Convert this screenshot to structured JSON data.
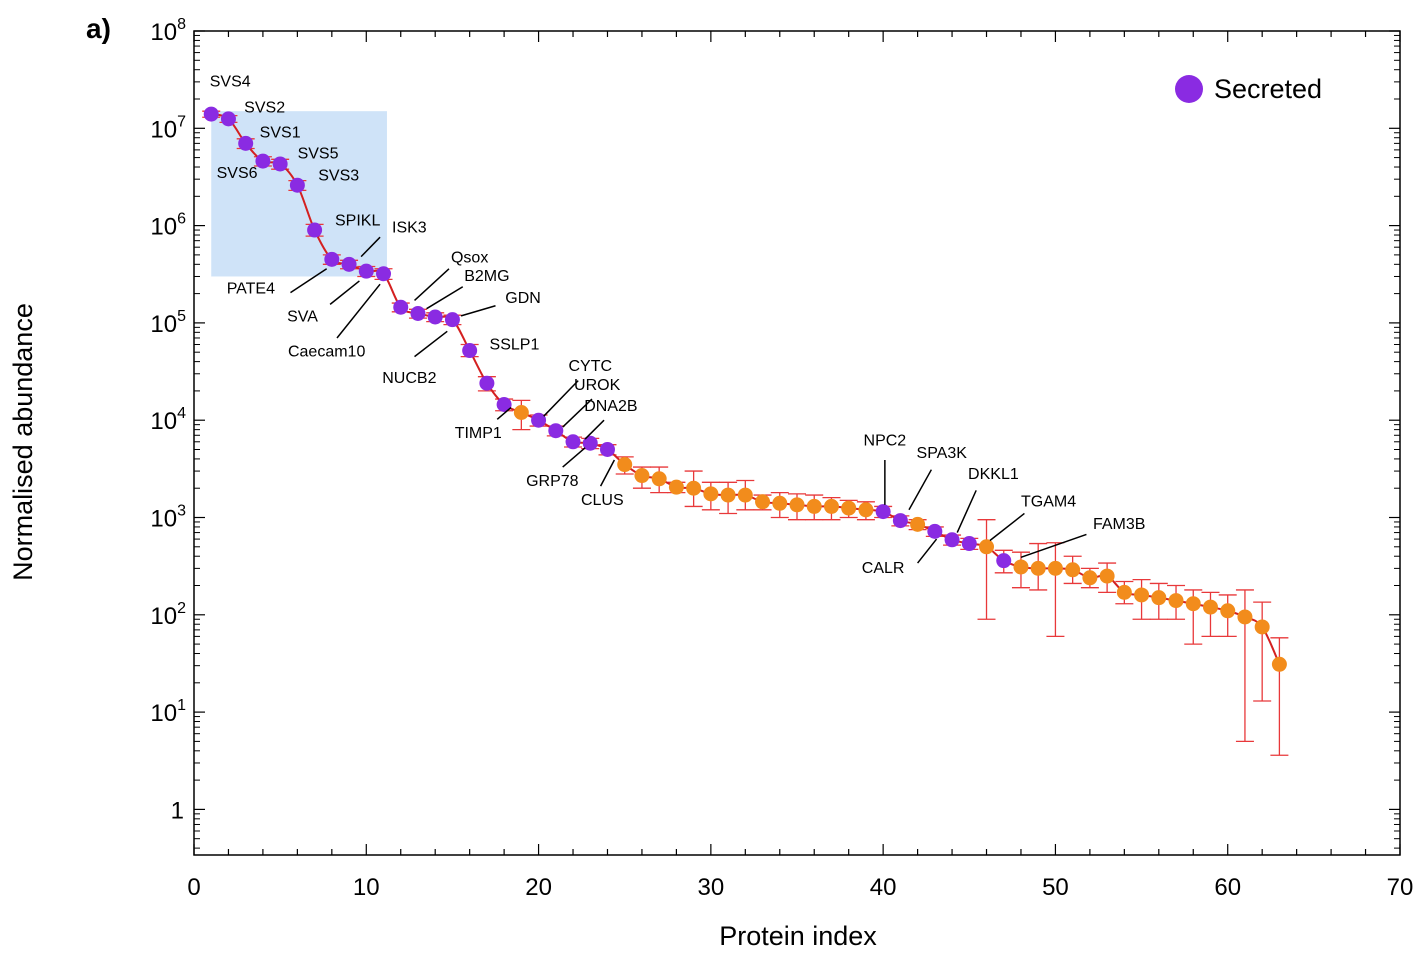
{
  "chart_data": {
    "type": "scatter",
    "panel_label": "a)",
    "xlabel": "Protein index",
    "ylabel": "Normalised abundance",
    "xlim": [
      0,
      70
    ],
    "ylim": [
      0.3,
      100000000
    ],
    "yscale": "log",
    "x_ticks": [
      0,
      10,
      20,
      30,
      40,
      50,
      60,
      70
    ],
    "y_ticks": [
      {
        "value": 1,
        "base": "1",
        "exp": ""
      },
      {
        "value": 10,
        "base": "10",
        "exp": "1"
      },
      {
        "value": 100,
        "base": "10",
        "exp": "2"
      },
      {
        "value": 1000,
        "base": "10",
        "exp": "3"
      },
      {
        "value": 10000,
        "base": "10",
        "exp": "4"
      },
      {
        "value": 100000,
        "base": "10",
        "exp": "5"
      },
      {
        "value": 1000000,
        "base": "10",
        "exp": "6"
      },
      {
        "value": 10000000,
        "base": "10",
        "exp": "7"
      },
      {
        "value": 100000000,
        "base": "10",
        "exp": "8"
      }
    ],
    "legend": {
      "label": "Secreted",
      "position": "top-right"
    },
    "colors": {
      "secreted": "#8a2be2",
      "other": "#f28c1c",
      "line": "#d42020",
      "error": "#e8383a",
      "highlight": "#cfe3f8"
    },
    "highlight_region": {
      "x": [
        1,
        11.2
      ],
      "y": [
        300000,
        15000000
      ]
    },
    "points": [
      {
        "x": 1,
        "y": 14000000,
        "lo": 13000000,
        "hi": 15000000,
        "secreted": true
      },
      {
        "x": 2,
        "y": 12500000,
        "lo": 11500000,
        "hi": 13500000,
        "secreted": true
      },
      {
        "x": 3,
        "y": 7000000,
        "lo": 6200000,
        "hi": 7800000,
        "secreted": true
      },
      {
        "x": 4,
        "y": 4600000,
        "lo": 4100000,
        "hi": 5100000,
        "secreted": true
      },
      {
        "x": 5,
        "y": 4300000,
        "lo": 3800000,
        "hi": 4800000,
        "secreted": true
      },
      {
        "x": 6,
        "y": 2600000,
        "lo": 2300000,
        "hi": 2900000,
        "secreted": true
      },
      {
        "x": 7,
        "y": 900000,
        "lo": 780000,
        "hi": 1030000,
        "secreted": true
      },
      {
        "x": 8,
        "y": 450000,
        "lo": 400000,
        "hi": 500000,
        "secreted": true
      },
      {
        "x": 9,
        "y": 400000,
        "lo": 360000,
        "hi": 440000,
        "secreted": true
      },
      {
        "x": 10,
        "y": 340000,
        "lo": 300000,
        "hi": 380000,
        "secreted": true
      },
      {
        "x": 11,
        "y": 320000,
        "lo": 280000,
        "hi": 360000,
        "secreted": true
      },
      {
        "x": 12,
        "y": 145000,
        "lo": 130000,
        "hi": 160000,
        "secreted": true
      },
      {
        "x": 13,
        "y": 125000,
        "lo": 112000,
        "hi": 138000,
        "secreted": true
      },
      {
        "x": 14,
        "y": 115000,
        "lo": 103000,
        "hi": 127000,
        "secreted": true
      },
      {
        "x": 15,
        "y": 108000,
        "lo": 96000,
        "hi": 120000,
        "secreted": true
      },
      {
        "x": 16,
        "y": 52000,
        "lo": 45000,
        "hi": 60000,
        "secreted": true
      },
      {
        "x": 17,
        "y": 24000,
        "lo": 20000,
        "hi": 28000,
        "secreted": true
      },
      {
        "x": 18,
        "y": 14500,
        "lo": 12500,
        "hi": 16500,
        "secreted": true
      },
      {
        "x": 19,
        "y": 12000,
        "lo": 8000,
        "hi": 16000,
        "secreted": false
      },
      {
        "x": 20,
        "y": 10000,
        "lo": 8700,
        "hi": 11300,
        "secreted": true
      },
      {
        "x": 21,
        "y": 7800,
        "lo": 6900,
        "hi": 8700,
        "secreted": true
      },
      {
        "x": 22,
        "y": 6000,
        "lo": 5300,
        "hi": 6700,
        "secreted": true
      },
      {
        "x": 23,
        "y": 5800,
        "lo": 5100,
        "hi": 6500,
        "secreted": true
      },
      {
        "x": 24,
        "y": 5000,
        "lo": 4400,
        "hi": 5600,
        "secreted": true
      },
      {
        "x": 25,
        "y": 3500,
        "lo": 2800,
        "hi": 4200,
        "secreted": false
      },
      {
        "x": 26,
        "y": 2700,
        "lo": 2000,
        "hi": 3300,
        "secreted": false
      },
      {
        "x": 27,
        "y": 2500,
        "lo": 1800,
        "hi": 3300,
        "secreted": false
      },
      {
        "x": 28,
        "y": 2050,
        "lo": 1800,
        "hi": 2300,
        "secreted": false
      },
      {
        "x": 29,
        "y": 2000,
        "lo": 1300,
        "hi": 3000,
        "secreted": false
      },
      {
        "x": 30,
        "y": 1750,
        "lo": 1200,
        "hi": 2300,
        "secreted": false
      },
      {
        "x": 31,
        "y": 1700,
        "lo": 1100,
        "hi": 2300,
        "secreted": false
      },
      {
        "x": 32,
        "y": 1700,
        "lo": 1200,
        "hi": 2400,
        "secreted": false
      },
      {
        "x": 33,
        "y": 1450,
        "lo": 1200,
        "hi": 1700,
        "secreted": false
      },
      {
        "x": 34,
        "y": 1400,
        "lo": 1000,
        "hi": 1800,
        "secreted": false
      },
      {
        "x": 35,
        "y": 1350,
        "lo": 950,
        "hi": 1750,
        "secreted": false
      },
      {
        "x": 36,
        "y": 1300,
        "lo": 950,
        "hi": 1700,
        "secreted": false
      },
      {
        "x": 37,
        "y": 1300,
        "lo": 950,
        "hi": 1600,
        "secreted": false
      },
      {
        "x": 38,
        "y": 1250,
        "lo": 1000,
        "hi": 1500,
        "secreted": false
      },
      {
        "x": 39,
        "y": 1200,
        "lo": 950,
        "hi": 1450,
        "secreted": false
      },
      {
        "x": 40,
        "y": 1150,
        "lo": 1000,
        "hi": 1300,
        "secreted": true
      },
      {
        "x": 41,
        "y": 930,
        "lo": 820,
        "hi": 1040,
        "secreted": true
      },
      {
        "x": 42,
        "y": 850,
        "lo": 750,
        "hi": 950,
        "secreted": false
      },
      {
        "x": 43,
        "y": 720,
        "lo": 640,
        "hi": 800,
        "secreted": true
      },
      {
        "x": 44,
        "y": 590,
        "lo": 520,
        "hi": 660,
        "secreted": true
      },
      {
        "x": 45,
        "y": 540,
        "lo": 470,
        "hi": 610,
        "secreted": true
      },
      {
        "x": 46,
        "y": 500,
        "lo": 90,
        "hi": 950,
        "secreted": false
      },
      {
        "x": 47,
        "y": 360,
        "lo": 270,
        "hi": 460,
        "secreted": true
      },
      {
        "x": 48,
        "y": 310,
        "lo": 190,
        "hi": 440,
        "secreted": false
      },
      {
        "x": 49,
        "y": 300,
        "lo": 180,
        "hi": 540,
        "secreted": false
      },
      {
        "x": 50,
        "y": 300,
        "lo": 60,
        "hi": 550,
        "secreted": false
      },
      {
        "x": 51,
        "y": 290,
        "lo": 210,
        "hi": 400,
        "secreted": false
      },
      {
        "x": 52,
        "y": 240,
        "lo": 190,
        "hi": 300,
        "secreted": false
      },
      {
        "x": 53,
        "y": 250,
        "lo": 170,
        "hi": 340,
        "secreted": false
      },
      {
        "x": 54,
        "y": 170,
        "lo": 130,
        "hi": 220,
        "secreted": false
      },
      {
        "x": 55,
        "y": 160,
        "lo": 90,
        "hi": 230,
        "secreted": false
      },
      {
        "x": 56,
        "y": 150,
        "lo": 90,
        "hi": 210,
        "secreted": false
      },
      {
        "x": 57,
        "y": 140,
        "lo": 90,
        "hi": 200,
        "secreted": false
      },
      {
        "x": 58,
        "y": 130,
        "lo": 50,
        "hi": 180,
        "secreted": false
      },
      {
        "x": 59,
        "y": 120,
        "lo": 60,
        "hi": 170,
        "secreted": false
      },
      {
        "x": 60,
        "y": 110,
        "lo": 60,
        "hi": 160,
        "secreted": false
      },
      {
        "x": 61,
        "y": 95,
        "lo": 5,
        "hi": 180,
        "secreted": false
      },
      {
        "x": 62,
        "y": 75,
        "lo": 13,
        "hi": 135,
        "secreted": false
      },
      {
        "x": 63,
        "y": 31,
        "lo": 3.6,
        "hi": 58,
        "secreted": false
      }
    ],
    "annotations": [
      {
        "label": "SVS4",
        "x": 2.1,
        "y": 27000000
      },
      {
        "label": "SVS2",
        "x": 4.1,
        "y": 14500000
      },
      {
        "label": "SVS1",
        "x": 5.0,
        "y": 8000000
      },
      {
        "label": "SVS5",
        "x": 7.2,
        "y": 4900000
      },
      {
        "label": "SVS6",
        "x": 2.5,
        "y": 3100000
      },
      {
        "label": "SVS3",
        "x": 8.4,
        "y": 2900000
      },
      {
        "label": "SPIKL",
        "x": 9.5,
        "y": 1000000
      },
      {
        "label": "ISK3",
        "x": 12.5,
        "y": 850000,
        "line": [
          [
            10.8,
            760000
          ],
          [
            9.7,
            480000
          ]
        ]
      },
      {
        "label": "Qsox",
        "x": 16.0,
        "y": 420000,
        "line": [
          [
            14.8,
            360000
          ],
          [
            12.8,
            170000
          ]
        ]
      },
      {
        "label": "B2MG",
        "x": 17.0,
        "y": 270000,
        "line": [
          [
            15.6,
            235000
          ],
          [
            13.5,
            140000
          ]
        ]
      },
      {
        "label": "GDN",
        "x": 19.1,
        "y": 160000,
        "line": [
          [
            17.5,
            150000
          ],
          [
            15.5,
            118000
          ]
        ]
      },
      {
        "label": "PATE4",
        "x": 3.3,
        "y": 200000,
        "line": [
          [
            5.6,
            205000
          ],
          [
            7.7,
            360000
          ]
        ]
      },
      {
        "label": "SVA",
        "x": 6.3,
        "y": 103000,
        "line": [
          [
            7.9,
            155000
          ],
          [
            9.6,
            270000
          ]
        ]
      },
      {
        "label": "Caecam10",
        "x": 7.7,
        "y": 45000,
        "line": [
          [
            8.3,
            70000
          ],
          [
            10.8,
            250000
          ]
        ]
      },
      {
        "label": "NUCB2",
        "x": 12.5,
        "y": 24000,
        "line": [
          [
            12.8,
            45000
          ],
          [
            14.7,
            82000
          ]
        ]
      },
      {
        "label": "SSLP1",
        "x": 18.6,
        "y": 53000
      },
      {
        "label": "CYTC",
        "x": 23.0,
        "y": 32000,
        "line": [
          [
            22.3,
            25500
          ],
          [
            20.3,
            11000
          ]
        ]
      },
      {
        "label": "UROK",
        "x": 23.4,
        "y": 20500,
        "line": [
          [
            23.1,
            16500
          ],
          [
            21.4,
            8500
          ]
        ]
      },
      {
        "label": "DNA2B",
        "x": 24.2,
        "y": 12500,
        "line": [
          [
            23.8,
            10000
          ],
          [
            22.7,
            6400
          ]
        ]
      },
      {
        "label": "TIMP1",
        "x": 16.5,
        "y": 6600,
        "line": [
          [
            17.6,
            10200
          ],
          [
            18.4,
            13500
          ]
        ]
      },
      {
        "label": "GRP78",
        "x": 20.8,
        "y": 2100,
        "line": [
          [
            21.4,
            3300
          ],
          [
            22.7,
            5200
          ]
        ]
      },
      {
        "label": "CLUS",
        "x": 23.7,
        "y": 1350,
        "line": [
          [
            23.6,
            2100
          ],
          [
            24.4,
            3900
          ]
        ]
      },
      {
        "label": "NPC2",
        "x": 40.1,
        "y": 5500,
        "line": [
          [
            40.1,
            3900
          ],
          [
            40.1,
            1350
          ]
        ]
      },
      {
        "label": "SPA3K",
        "x": 43.4,
        "y": 4100,
        "line": [
          [
            42.8,
            3100
          ],
          [
            41.5,
            1200
          ]
        ]
      },
      {
        "label": "DKKL1",
        "x": 46.4,
        "y": 2500,
        "line": [
          [
            45.4,
            1900
          ],
          [
            44.3,
            700
          ]
        ]
      },
      {
        "label": "TGAM4",
        "x": 49.6,
        "y": 1300,
        "line": [
          [
            48.2,
            1100
          ],
          [
            46.2,
            580
          ]
        ]
      },
      {
        "label": "FAM3B",
        "x": 53.7,
        "y": 760,
        "line": [
          [
            51.8,
            670
          ],
          [
            48.0,
            390
          ]
        ]
      },
      {
        "label": "CALR",
        "x": 40.0,
        "y": 270,
        "line": [
          [
            42.0,
            340
          ],
          [
            43.1,
            600
          ]
        ]
      }
    ]
  }
}
